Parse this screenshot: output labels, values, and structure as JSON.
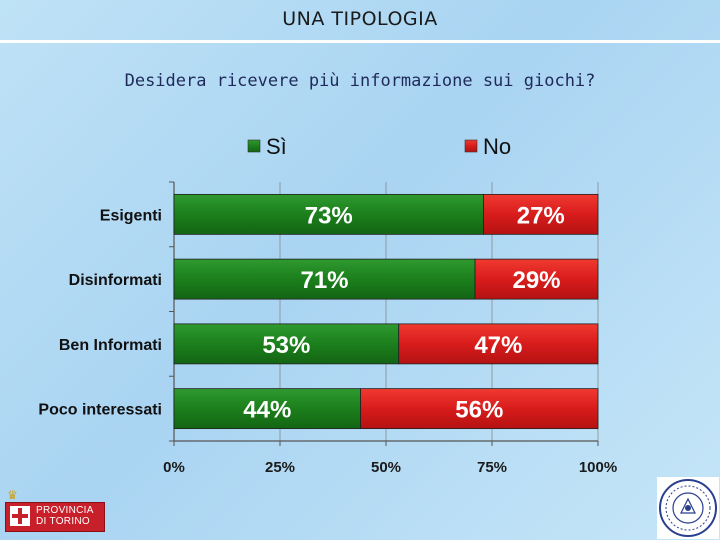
{
  "header": {
    "title": "UNA TIPOLOGIA",
    "question": "Desidera ricevere più informazione sui giochi?"
  },
  "chart_data": {
    "type": "bar",
    "orientation": "horizontal",
    "stacked": true,
    "categories": [
      "Esigenti",
      "Disinformati",
      "Ben Informati",
      "Poco interessati"
    ],
    "series": [
      {
        "name": "Sì",
        "values": [
          73,
          71,
          53,
          44
        ],
        "labels": [
          "73%",
          "71%",
          "53%",
          "44%"
        ]
      },
      {
        "name": "No",
        "values": [
          27,
          29,
          47,
          56
        ],
        "labels": [
          "27%",
          "29%",
          "47%",
          "56%"
        ]
      }
    ],
    "x_ticks": [
      "0%",
      "25%",
      "50%",
      "75%",
      "100%"
    ],
    "xlim": [
      0,
      100
    ],
    "grid": true,
    "legend_position": "top",
    "colors": {
      "si": "#1f8a1f",
      "no": "#e02020"
    }
  },
  "logo": {
    "line1": "PROVINCIA",
    "line2": "DI TORINO"
  }
}
